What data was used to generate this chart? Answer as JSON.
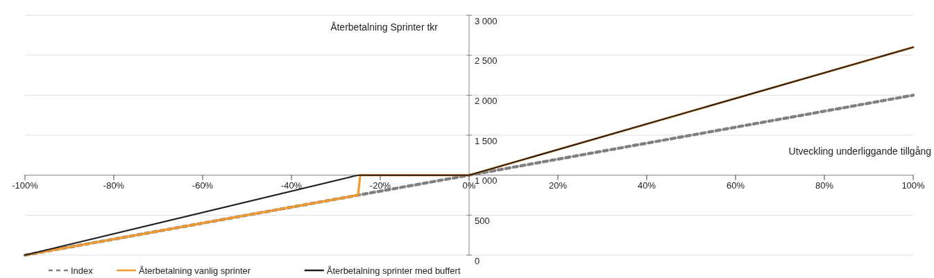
{
  "chart_data": {
    "type": "line",
    "xlabel": "Utveckling underliggande tillgång",
    "ylabel": "Återbetalning Sprinter tkr",
    "xlim": [
      -100,
      100
    ],
    "xticks": [
      {
        "value": -100,
        "label": "-100%"
      },
      {
        "value": -80,
        "label": "-80%"
      },
      {
        "value": -60,
        "label": "-60%"
      },
      {
        "value": -40,
        "label": "-40%"
      },
      {
        "value": -20,
        "label": "-20%"
      },
      {
        "value": 0,
        "label": "0%"
      },
      {
        "value": 20,
        "label": "20%"
      },
      {
        "value": 40,
        "label": "40%"
      },
      {
        "value": 60,
        "label": "60%"
      },
      {
        "value": 80,
        "label": "80%"
      },
      {
        "value": 100,
        "label": "100%"
      }
    ],
    "ylim": [
      0,
      3000
    ],
    "yticks": [
      0,
      500,
      {
        "value": 1000,
        "label": "1 000"
      },
      {
        "value": 1500,
        "label": "1 500"
      },
      {
        "value": 2000,
        "label": "2 000"
      },
      {
        "value": 2500,
        "label": "2 500"
      },
      {
        "value": 3000,
        "label": "3 000"
      }
    ],
    "grid": "y",
    "legend": "bottom left",
    "series": [
      {
        "name": "Index",
        "color": "#808080",
        "line_style": "dashed",
        "x": [
          -100,
          100
        ],
        "values": [
          0,
          2000
        ]
      },
      {
        "name": "Återbetalning vanlig sprinter",
        "color": "#f29a2e",
        "x": [
          -100,
          -25,
          -24.5,
          0,
          100
        ],
        "values": [
          0,
          750,
          1000,
          1000,
          2600
        ]
      },
      {
        "name": "Återbetalning sprinter med buffert",
        "color": "#231f20",
        "x": [
          -100,
          -25,
          0,
          100
        ],
        "values": [
          0,
          1000,
          1000,
          2600
        ]
      }
    ]
  }
}
